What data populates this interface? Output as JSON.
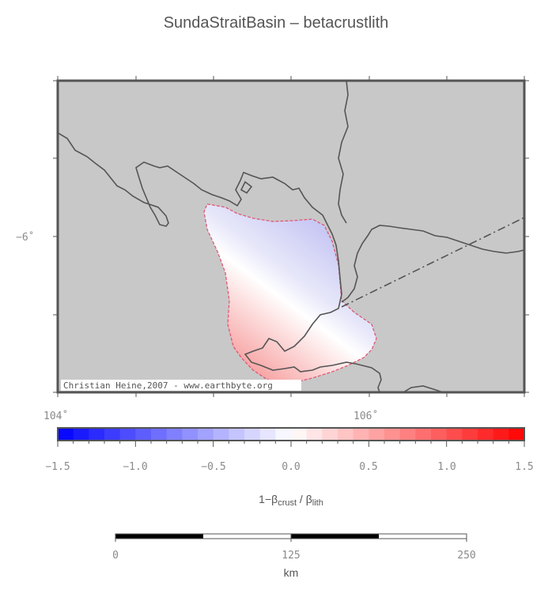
{
  "title": "SundaStraitBasin – betacrustlith",
  "credit": "Christian Heine,2007 - www.earthbyte.org",
  "map": {
    "lat_label": "−6˚",
    "lon_labels": [
      "104˚",
      "106˚"
    ]
  },
  "colorbar": {
    "ticks": [
      "−1.5",
      "−1.0",
      "−0.5",
      "0.0",
      "0.5",
      "1.0",
      "1.5"
    ],
    "range": [
      -1.5,
      1.5
    ],
    "label_prefix": "1−β",
    "label_sub1": "crust",
    "label_mid": " / β",
    "label_sub2": "lith",
    "colors": {
      "min": "#0000ff",
      "zero": "#ffffff",
      "max": "#ff0000"
    }
  },
  "scalebar": {
    "ticks": [
      "0",
      "125",
      "250"
    ],
    "unit": "km"
  },
  "colors": {
    "land": "#c8c8c8",
    "coast": "#555555",
    "frame": "#555555",
    "basin_outline": "#e0506e"
  }
}
